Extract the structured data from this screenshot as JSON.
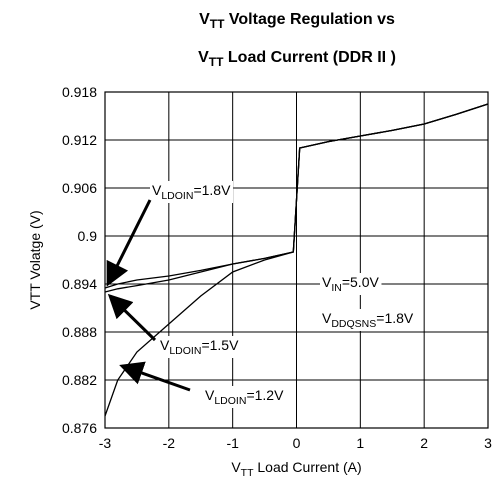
{
  "chart_data": {
    "type": "line",
    "title": [
      [
        "V",
        "TT",
        " Voltage Regulation vs"
      ],
      [
        "V",
        "TT",
        " Load Current (DDR II )"
      ]
    ],
    "xlabel": [
      "V",
      "TT",
      " Load Current (A)"
    ],
    "ylabel": "VTT Volatge (V)",
    "x": [
      -3,
      -2.8,
      -2.5,
      -2,
      -1.5,
      -1,
      -0.5,
      -0.05,
      0.05,
      0.5,
      1,
      1.5,
      2,
      2.5,
      3
    ],
    "series": [
      {
        "color": "#000000",
        "values": [
          0.8935,
          0.894,
          0.8945,
          0.895,
          0.8957,
          0.8965,
          0.8972,
          0.898,
          0.911,
          0.9118,
          0.9125,
          0.9132,
          0.914,
          0.9152,
          0.9165
        ]
      },
      {
        "color": "#000000",
        "values": [
          0.893,
          0.8934,
          0.8938,
          0.8945,
          0.8955,
          0.8965,
          0.8972,
          0.898,
          0.911,
          0.9118,
          0.9125,
          0.9132,
          0.914,
          0.9152,
          0.9165
        ]
      },
      {
        "color": "#000000",
        "values": [
          0.8775,
          0.882,
          0.8855,
          0.889,
          0.8925,
          0.8955,
          0.897,
          0.898,
          0.911,
          0.9118,
          0.9125,
          0.9132,
          0.914,
          0.9152,
          0.9165
        ]
      }
    ],
    "annotations": [
      [
        "V",
        "LDOIN",
        "=1.8V"
      ],
      [
        "V",
        "LDOIN",
        "=1.5V"
      ],
      [
        "V",
        "LDOIN",
        "=1.2V"
      ],
      [
        "V",
        "IN",
        "=5.0V"
      ],
      [
        "V",
        "DDQSNS",
        "=1.8V"
      ]
    ],
    "xlim": [
      -3,
      3
    ],
    "xticks": [
      -3,
      -2,
      -1,
      0,
      1,
      2,
      3
    ],
    "ylim": [
      0.876,
      0.918
    ],
    "yticks": [
      0.876,
      0.882,
      0.888,
      0.894,
      0.9,
      0.906,
      0.912,
      0.918
    ],
    "grid": true
  }
}
